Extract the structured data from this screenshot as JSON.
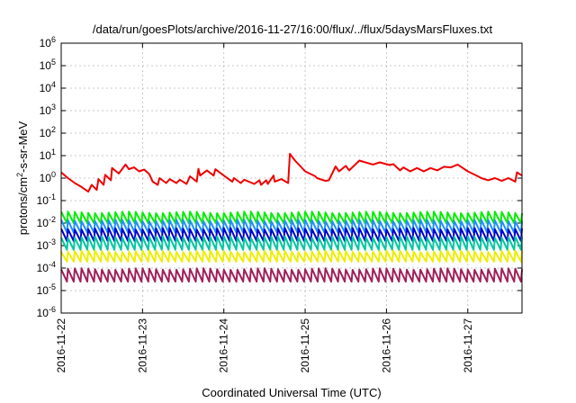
{
  "chart_data": {
    "type": "line",
    "title": "/data/run/goesPlots/archive/2016-11-27/16:00/flux/../flux/5daysMarsFluxes.txt",
    "xlabel": "Coordinated Universal Time (UTC)",
    "ylabel_parts": [
      "protons/cm",
      "2",
      "-s-sr-MeV"
    ],
    "yscale": "log",
    "ylim": [
      1e-06,
      1000000.0
    ],
    "xlim": [
      "2016-11-22",
      "2016-11-27T16:00"
    ],
    "grid": true,
    "x_ticks": [
      "2016-11-22",
      "2016-11-23",
      "2016-11-24",
      "2016-11-25",
      "2016-11-26",
      "2016-11-27"
    ],
    "y_ticks": [
      {
        "value": 1e-06,
        "base": "10",
        "exp": "-6"
      },
      {
        "value": 1e-05,
        "base": "10",
        "exp": "-5"
      },
      {
        "value": 0.0001,
        "base": "10",
        "exp": "-4"
      },
      {
        "value": 0.001,
        "base": "10",
        "exp": "-3"
      },
      {
        "value": 0.01,
        "base": "10",
        "exp": "-2"
      },
      {
        "value": 0.1,
        "base": "10",
        "exp": "-1"
      },
      {
        "value": 1,
        "base": "10",
        "exp": "0"
      },
      {
        "value": 10,
        "base": "10",
        "exp": "1"
      },
      {
        "value": 100,
        "base": "10",
        "exp": "2"
      },
      {
        "value": 1000,
        "base": "10",
        "exp": "3"
      },
      {
        "value": 10000,
        "base": "10",
        "exp": "4"
      },
      {
        "value": 100000,
        "base": "10",
        "exp": "5"
      },
      {
        "value": 1000000,
        "base": "10",
        "exp": "6"
      }
    ],
    "series": [
      {
        "color": "#ee0000",
        "x": [
          "2016-11-22T00:00",
          "2016-11-22T02:00",
          "2016-11-22T04:00",
          "2016-11-22T06:00",
          "2016-11-22T08:00",
          "2016-11-22T09:00",
          "2016-11-22T10:30",
          "2016-11-22T11:00",
          "2016-11-22T12:30",
          "2016-11-22T13:00",
          "2016-11-22T14:40",
          "2016-11-22T15:00",
          "2016-11-22T17:00",
          "2016-11-22T19:00",
          "2016-11-22T20:00",
          "2016-11-22T21:30",
          "2016-11-22T23:00",
          "2016-11-23T00:30",
          "2016-11-23T02:00",
          "2016-11-23T03:00",
          "2016-11-23T04:30",
          "2016-11-23T05:00",
          "2016-11-23T07:00",
          "2016-11-23T08:00",
          "2016-11-23T10:00",
          "2016-11-23T11:00",
          "2016-11-23T13:00",
          "2016-11-23T14:00",
          "2016-11-23T16:00",
          "2016-11-23T16:30",
          "2016-11-23T17:00",
          "2016-11-23T19:00",
          "2016-11-23T21:00",
          "2016-11-23T21:30",
          "2016-11-24T00:00",
          "2016-11-24T02:30",
          "2016-11-24T03:00",
          "2016-11-24T05:00",
          "2016-11-24T06:00",
          "2016-11-24T09:00",
          "2016-11-24T10:30",
          "2016-11-24T11:00",
          "2016-11-24T12:30",
          "2016-11-24T13:00",
          "2016-11-24T14:40",
          "2016-11-24T15:00",
          "2016-11-24T17:00",
          "2016-11-24T19:00",
          "2016-11-24T19:30",
          "2016-11-24T21:00",
          "2016-11-25T00:00",
          "2016-11-25T03:00",
          "2016-11-25T03:30",
          "2016-11-25T06:00",
          "2016-11-25T07:00",
          "2016-11-25T09:00",
          "2016-11-25T10:00",
          "2016-11-25T12:00",
          "2016-11-25T13:00",
          "2016-11-25T16:00",
          "2016-11-25T20:00",
          "2016-11-25T22:00",
          "2016-11-26T01:00",
          "2016-11-26T02:00",
          "2016-11-26T04:00",
          "2016-11-26T05:00",
          "2016-11-26T07:00",
          "2016-11-26T09:00",
          "2016-11-26T11:00",
          "2016-11-26T13:00",
          "2016-11-26T15:00",
          "2016-11-26T17:00",
          "2016-11-26T19:00",
          "2016-11-26T21:00",
          "2016-11-27T00:00",
          "2016-11-27T03:00",
          "2016-11-27T04:00",
          "2016-11-27T06:00",
          "2016-11-27T08:00",
          "2016-11-27T10:00",
          "2016-11-27T12:00",
          "2016-11-27T14:00",
          "2016-11-27T14:30",
          "2016-11-27T16:00"
        ],
        "y": [
          1.8,
          1.0,
          0.6,
          0.4,
          0.25,
          0.5,
          0.3,
          0.9,
          0.5,
          1.4,
          0.8,
          2.8,
          1.6,
          4.0,
          2.5,
          3.0,
          2.0,
          2.4,
          1.5,
          0.7,
          0.5,
          1.0,
          0.6,
          0.9,
          0.6,
          0.85,
          0.55,
          1.2,
          0.7,
          2.6,
          1.3,
          2.2,
          1.3,
          2.5,
          1.3,
          0.7,
          1.0,
          0.6,
          0.85,
          0.55,
          0.8,
          0.5,
          0.8,
          0.55,
          1.3,
          0.7,
          0.9,
          0.6,
          12,
          6,
          2,
          1.2,
          1.0,
          0.75,
          0.8,
          3.3,
          2.0,
          3.5,
          2.2,
          6,
          4,
          5,
          3.8,
          4.2,
          2.2,
          3.0,
          2.0,
          2.8,
          2.0,
          2.8,
          2.2,
          3.2,
          3.0,
          4.0,
          2.0,
          1.2,
          1.0,
          0.8,
          1.0,
          0.75,
          1.0,
          0.7,
          1.8,
          1.3
        ]
      },
      {
        "color": "#00ee00",
        "base": 0.018,
        "amp": 0.012,
        "drift": 0.45
      },
      {
        "color": "#1e90ff",
        "base": 0.0075,
        "amp": 0.0055,
        "drift": 0.5
      },
      {
        "color": "#0000cd",
        "base": 0.0032,
        "amp": 0.0024,
        "drift": 0.5
      },
      {
        "color": "#00c8a0",
        "base": 0.0013,
        "amp": 0.0011,
        "drift": 0.5
      },
      {
        "color": "#eeee00",
        "base": 0.00032,
        "amp": 0.00024,
        "drift": 0.4
      },
      {
        "color": "#a0205a",
        "base": 5e-05,
        "amp": 4e-05,
        "drift": 0.5
      }
    ]
  }
}
